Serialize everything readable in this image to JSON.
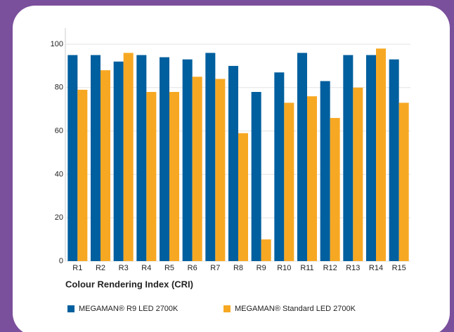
{
  "chart_data": {
    "type": "bar",
    "xlabel": "Colour Rendering Index (CRI)",
    "categories": [
      "R1",
      "R2",
      "R3",
      "R4",
      "R5",
      "R6",
      "R7",
      "R8",
      "R9",
      "R10",
      "R11",
      "R12",
      "R13",
      "R14",
      "R15"
    ],
    "series": [
      {
        "name": "MEGAMAN® R9 LED 2700K",
        "color": "#005f9e",
        "values": [
          95,
          95,
          92,
          95,
          94,
          93,
          96,
          90,
          78,
          87,
          96,
          83,
          95,
          95,
          93
        ]
      },
      {
        "name": "MEGAMAN® Standard LED 2700K",
        "color": "#f7a823",
        "values": [
          79,
          88,
          96,
          78,
          78,
          85,
          84,
          59,
          10,
          73,
          76,
          66,
          80,
          98,
          73
        ]
      }
    ],
    "ylim": [
      0,
      100
    ],
    "yticks": [
      0,
      20,
      40,
      60,
      80,
      100
    ],
    "grid": true
  }
}
